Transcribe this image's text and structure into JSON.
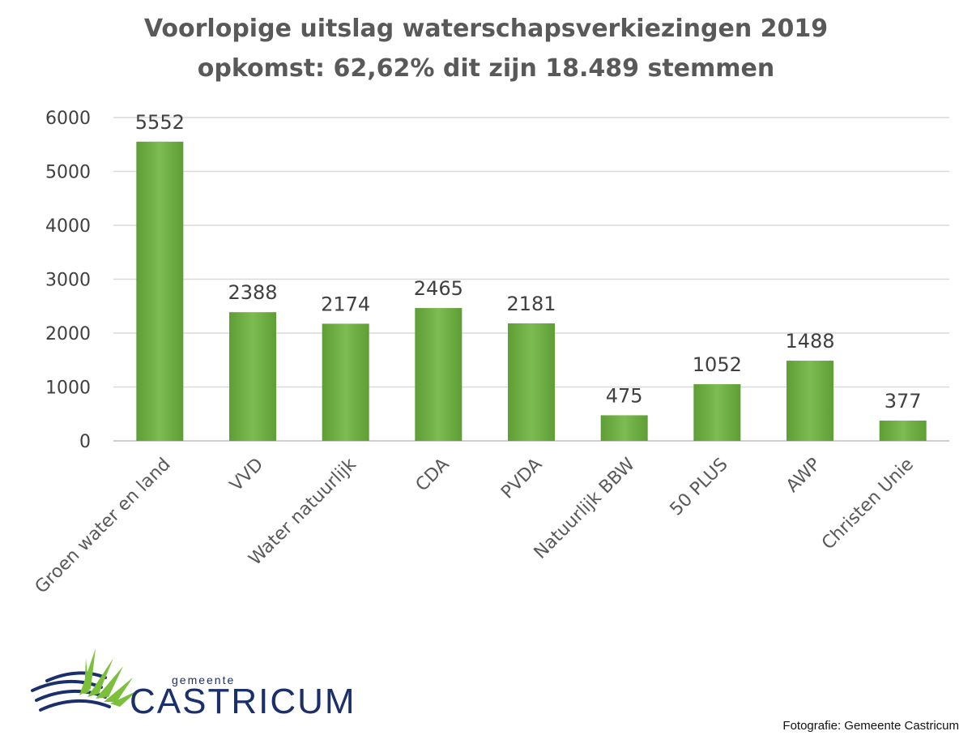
{
  "chart_data": {
    "type": "bar",
    "title": "Voorlopige uitslag waterschapsverkiezingen 2019",
    "subtitle": "opkomst: 62,62% dit zijn 18.489 stemmen",
    "categories": [
      "Groen water en land",
      "VVD",
      "Water natuurlijk",
      "CDA",
      "PVDA",
      "Natuurlijk BBW",
      "50 PLUS",
      "AWP",
      "Christen Unie"
    ],
    "values": [
      5552,
      2388,
      2174,
      2465,
      2181,
      475,
      1052,
      1488,
      377
    ],
    "yticks": [
      "0",
      "1000",
      "2000",
      "3000",
      "4000",
      "5000",
      "6000"
    ],
    "ylim": [
      0,
      6000
    ],
    "xlabel": "",
    "ylabel": "",
    "grid": true,
    "bar_color": "#6fb043"
  },
  "logo": {
    "small_text": "gemeente",
    "big_text": "CASTRICUM"
  },
  "credit": "Fotografie: Gemeente Castricum"
}
